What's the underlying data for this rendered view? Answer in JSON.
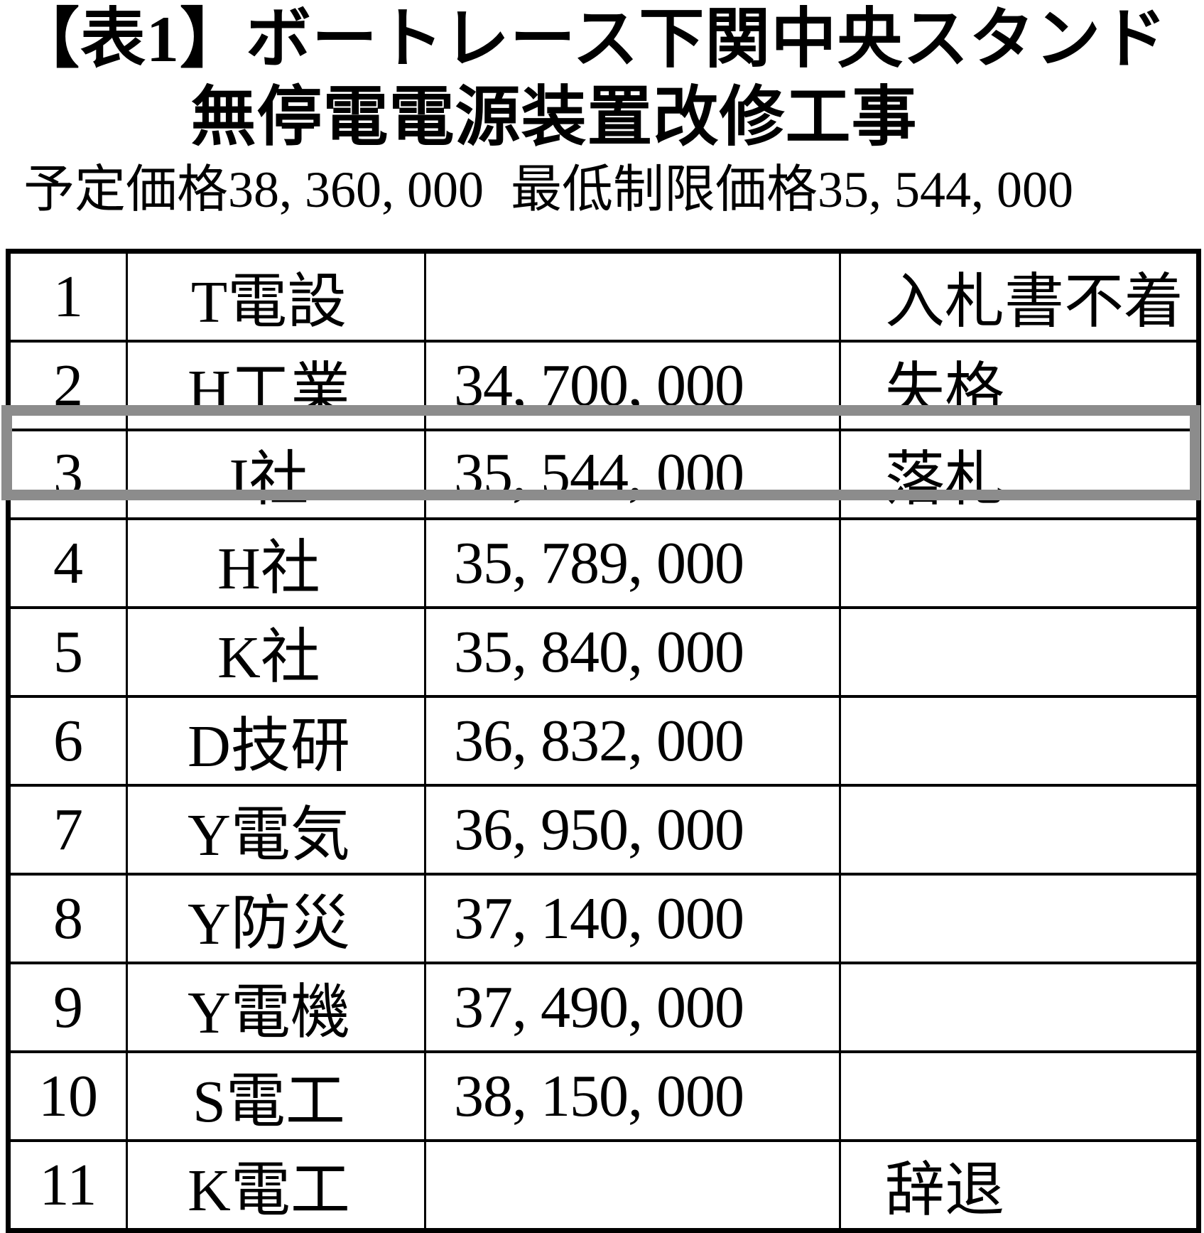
{
  "title": {
    "line1": "【表1】ボートレース下関中央スタンド",
    "line2": "無停電電源装置改修工事"
  },
  "price_info": {
    "planned_label": "予定価格",
    "planned_value": "38, 360, 000",
    "minimum_label": "最低制限価格",
    "minimum_value": "35, 544, 000"
  },
  "table": {
    "rows": [
      {
        "no": "1",
        "bidder": "T電設",
        "price": "",
        "result": "入札書不着",
        "highlighted": false
      },
      {
        "no": "2",
        "bidder": "H工業",
        "price": "34, 700, 000",
        "result": "失格",
        "highlighted": false
      },
      {
        "no": "3",
        "bidder": "I社",
        "price": "35, 544, 000",
        "result": "落札",
        "highlighted": true
      },
      {
        "no": "4",
        "bidder": "H社",
        "price": "35, 789, 000",
        "result": "",
        "highlighted": false
      },
      {
        "no": "5",
        "bidder": "K社",
        "price": "35, 840, 000",
        "result": "",
        "highlighted": false
      },
      {
        "no": "6",
        "bidder": "D技研",
        "price": "36, 832, 000",
        "result": "",
        "highlighted": false
      },
      {
        "no": "7",
        "bidder": "Y電気",
        "price": "36, 950, 000",
        "result": "",
        "highlighted": false
      },
      {
        "no": "8",
        "bidder": "Y防災",
        "price": "37, 140, 000",
        "result": "",
        "highlighted": false
      },
      {
        "no": "9",
        "bidder": "Y電機",
        "price": "37, 490, 000",
        "result": "",
        "highlighted": false
      },
      {
        "no": "10",
        "bidder": "S電工",
        "price": "38, 150, 000",
        "result": "",
        "highlighted": false
      },
      {
        "no": "11",
        "bidder": "K電工",
        "price": "",
        "result": "辞退",
        "highlighted": false
      }
    ]
  },
  "highlight_color": "#8c8c8c"
}
